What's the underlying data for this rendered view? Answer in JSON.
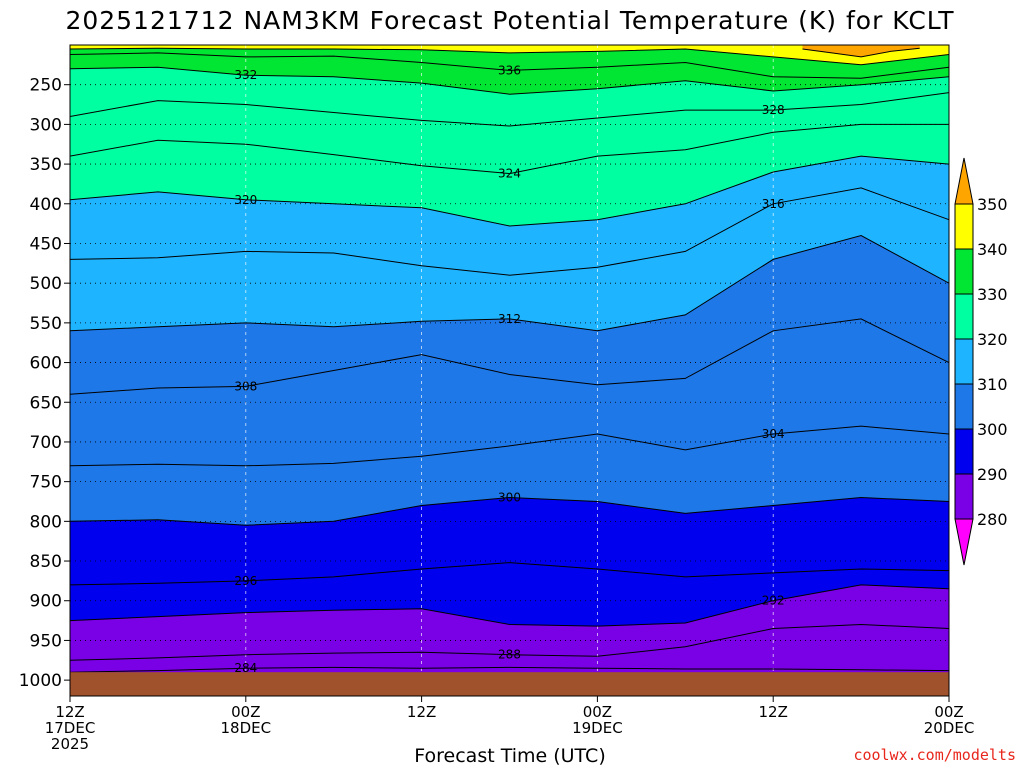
{
  "chart_data": {
    "type": "contour",
    "title": "2025121712 NAM3KM Forecast Potential Temperature (K) for KCLT",
    "xlabel": "Forecast Time (UTC)",
    "ylabel": "",
    "credit": "coolwx.com/modelts",
    "x_ticks": [
      {
        "hour": 0,
        "label1": "12Z",
        "label2": "17DEC",
        "label3": "2025"
      },
      {
        "hour": 12,
        "label1": "00Z",
        "label2": "18DEC",
        "label3": ""
      },
      {
        "hour": 24,
        "label1": "12Z",
        "label2": "",
        "label3": ""
      },
      {
        "hour": 36,
        "label1": "00Z",
        "label2": "19DEC",
        "label3": ""
      },
      {
        "hour": 48,
        "label1": "12Z",
        "label2": "",
        "label3": ""
      },
      {
        "hour": 60,
        "label1": "00Z",
        "label2": "20DEC",
        "label3": ""
      }
    ],
    "y_ticks": [
      250,
      300,
      350,
      400,
      450,
      500,
      550,
      600,
      650,
      700,
      750,
      800,
      850,
      900,
      950,
      1000
    ],
    "y_tick_labels": [
      "250",
      "300",
      "350",
      "400",
      "450",
      "500",
      "550",
      "600",
      "650",
      "700",
      "750",
      "800",
      "850",
      "900",
      "950",
      "1000"
    ],
    "x_range_hours": [
      0,
      60
    ],
    "y_range_hpa": [
      200,
      1020
    ],
    "surface_pressure_hpa": 990,
    "colorbar": {
      "levels": [
        280,
        290,
        300,
        310,
        320,
        330,
        340,
        350
      ],
      "labels": [
        "280",
        "290",
        "300",
        "310",
        "320",
        "330",
        "340",
        "350"
      ],
      "colors": [
        "#ff00ff",
        "#7a00e6",
        "#2a00d6",
        "#0000ee",
        "#1e78e8",
        "#1eb4ff",
        "#00ffa0",
        "#00e632",
        "#87e600",
        "#ffff00",
        "#ffa500"
      ]
    },
    "fill_bands": [
      {
        "lo": 280,
        "hi": 290,
        "color": "#7a00e6"
      },
      {
        "lo": 290,
        "hi": 300,
        "color": "#0000ee"
      },
      {
        "lo": 300,
        "hi": 310,
        "color": "#1e78e8"
      },
      {
        "lo": 310,
        "hi": 320,
        "color": "#1eb4ff"
      },
      {
        "lo": 320,
        "hi": 330,
        "color": "#00ffa0"
      },
      {
        "lo": 330,
        "hi": 340,
        "color": "#00e632"
      },
      {
        "lo": 340,
        "hi": 350,
        "color": "#ffff00"
      },
      {
        "lo": 350,
        "hi": 360,
        "color": "#ffa500"
      }
    ],
    "isentropes": [
      {
        "theta": 284,
        "label": "284",
        "points": [
          [
            0,
            990
          ],
          [
            6,
            988
          ],
          [
            12,
            985
          ],
          [
            18,
            984
          ],
          [
            24,
            985
          ],
          [
            30,
            984
          ],
          [
            36,
            985
          ],
          [
            42,
            986
          ],
          [
            48,
            986
          ],
          [
            54,
            987
          ],
          [
            60,
            988
          ]
        ]
      },
      {
        "theta": 288,
        "label": "288",
        "points": [
          [
            0,
            975
          ],
          [
            6,
            972
          ],
          [
            12,
            968
          ],
          [
            18,
            966
          ],
          [
            24,
            965
          ],
          [
            30,
            968
          ],
          [
            36,
            970
          ],
          [
            42,
            958
          ],
          [
            48,
            935
          ],
          [
            54,
            930
          ],
          [
            60,
            935
          ]
        ]
      },
      {
        "theta": 292,
        "label": "292",
        "points": [
          [
            0,
            925
          ],
          [
            6,
            920
          ],
          [
            12,
            915
          ],
          [
            18,
            912
          ],
          [
            24,
            910
          ],
          [
            30,
            930
          ],
          [
            36,
            932
          ],
          [
            42,
            928
          ],
          [
            48,
            900
          ],
          [
            54,
            880
          ],
          [
            60,
            885
          ]
        ]
      },
      {
        "theta": 296,
        "label": "296",
        "points": [
          [
            0,
            880
          ],
          [
            6,
            878
          ],
          [
            12,
            875
          ],
          [
            18,
            870
          ],
          [
            24,
            860
          ],
          [
            30,
            852
          ],
          [
            36,
            860
          ],
          [
            42,
            870
          ],
          [
            48,
            865
          ],
          [
            54,
            860
          ],
          [
            60,
            862
          ]
        ]
      },
      {
        "theta": 300,
        "label": "300",
        "points": [
          [
            0,
            800
          ],
          [
            6,
            798
          ],
          [
            12,
            805
          ],
          [
            18,
            800
          ],
          [
            24,
            780
          ],
          [
            30,
            770
          ],
          [
            36,
            775
          ],
          [
            42,
            790
          ],
          [
            48,
            780
          ],
          [
            54,
            770
          ],
          [
            60,
            775
          ]
        ]
      },
      {
        "theta": 304,
        "label": "304",
        "points": [
          [
            0,
            730
          ],
          [
            6,
            728
          ],
          [
            12,
            730
          ],
          [
            18,
            727
          ],
          [
            24,
            718
          ],
          [
            30,
            705
          ],
          [
            36,
            690
          ],
          [
            42,
            710
          ],
          [
            48,
            690
          ],
          [
            54,
            680
          ],
          [
            60,
            690
          ]
        ]
      },
      {
        "theta": 308,
        "label": "308",
        "points": [
          [
            0,
            640
          ],
          [
            6,
            632
          ],
          [
            12,
            630
          ],
          [
            18,
            610
          ],
          [
            24,
            590
          ],
          [
            30,
            615
          ],
          [
            36,
            628
          ],
          [
            42,
            620
          ],
          [
            48,
            560
          ],
          [
            54,
            545
          ],
          [
            60,
            600
          ]
        ]
      },
      {
        "theta": 312,
        "label": "312",
        "points": [
          [
            0,
            560
          ],
          [
            6,
            555
          ],
          [
            12,
            550
          ],
          [
            18,
            555
          ],
          [
            24,
            548
          ],
          [
            30,
            545
          ],
          [
            36,
            560
          ],
          [
            42,
            540
          ],
          [
            48,
            470
          ],
          [
            54,
            440
          ],
          [
            60,
            500
          ]
        ]
      },
      {
        "theta": 316,
        "label": "316",
        "points": [
          [
            0,
            470
          ],
          [
            6,
            468
          ],
          [
            12,
            460
          ],
          [
            18,
            462
          ],
          [
            24,
            478
          ],
          [
            30,
            490
          ],
          [
            36,
            480
          ],
          [
            42,
            460
          ],
          [
            48,
            400
          ],
          [
            54,
            380
          ],
          [
            60,
            420
          ]
        ]
      },
      {
        "theta": 320,
        "label": "320",
        "points": [
          [
            0,
            395
          ],
          [
            6,
            385
          ],
          [
            12,
            395
          ],
          [
            18,
            400
          ],
          [
            24,
            405
          ],
          [
            30,
            428
          ],
          [
            36,
            420
          ],
          [
            42,
            400
          ],
          [
            48,
            360
          ],
          [
            54,
            340
          ],
          [
            60,
            350
          ]
        ]
      },
      {
        "theta": 324,
        "label": "324",
        "points": [
          [
            0,
            340
          ],
          [
            6,
            320
          ],
          [
            12,
            325
          ],
          [
            18,
            338
          ],
          [
            24,
            352
          ],
          [
            30,
            362
          ],
          [
            36,
            340
          ],
          [
            42,
            332
          ],
          [
            48,
            310
          ],
          [
            54,
            300
          ],
          [
            60,
            300
          ]
        ]
      },
      {
        "theta": 328,
        "label": "328",
        "points": [
          [
            0,
            290
          ],
          [
            6,
            270
          ],
          [
            12,
            275
          ],
          [
            18,
            285
          ],
          [
            24,
            295
          ],
          [
            30,
            302
          ],
          [
            36,
            292
          ],
          [
            42,
            282
          ],
          [
            48,
            282
          ],
          [
            54,
            275
          ],
          [
            60,
            260
          ]
        ]
      },
      {
        "theta": 332,
        "label": "332",
        "points": [
          [
            0,
            230
          ],
          [
            6,
            228
          ],
          [
            12,
            238
          ],
          [
            18,
            240
          ],
          [
            24,
            248
          ],
          [
            30,
            262
          ],
          [
            36,
            255
          ],
          [
            42,
            245
          ],
          [
            48,
            258
          ],
          [
            54,
            250
          ],
          [
            60,
            240
          ]
        ]
      },
      {
        "theta": 336,
        "label": "336",
        "points": [
          [
            0,
            212
          ],
          [
            6,
            210
          ],
          [
            12,
            215
          ],
          [
            18,
            214
          ],
          [
            24,
            222
          ],
          [
            30,
            232
          ],
          [
            36,
            228
          ],
          [
            42,
            222
          ],
          [
            48,
            240
          ],
          [
            54,
            242
          ],
          [
            60,
            228
          ]
        ]
      },
      {
        "theta": 340,
        "label": "",
        "points": [
          [
            0,
            205
          ],
          [
            6,
            204
          ],
          [
            12,
            205
          ],
          [
            18,
            205
          ],
          [
            24,
            206
          ],
          [
            30,
            210
          ],
          [
            36,
            208
          ],
          [
            42,
            205
          ],
          [
            48,
            215
          ],
          [
            54,
            225
          ],
          [
            60,
            212
          ]
        ]
      },
      {
        "theta": 350,
        "label": "",
        "points": [
          [
            50,
            205
          ],
          [
            52,
            210
          ],
          [
            54,
            215
          ],
          [
            56,
            208
          ],
          [
            58,
            204
          ]
        ]
      }
    ]
  }
}
